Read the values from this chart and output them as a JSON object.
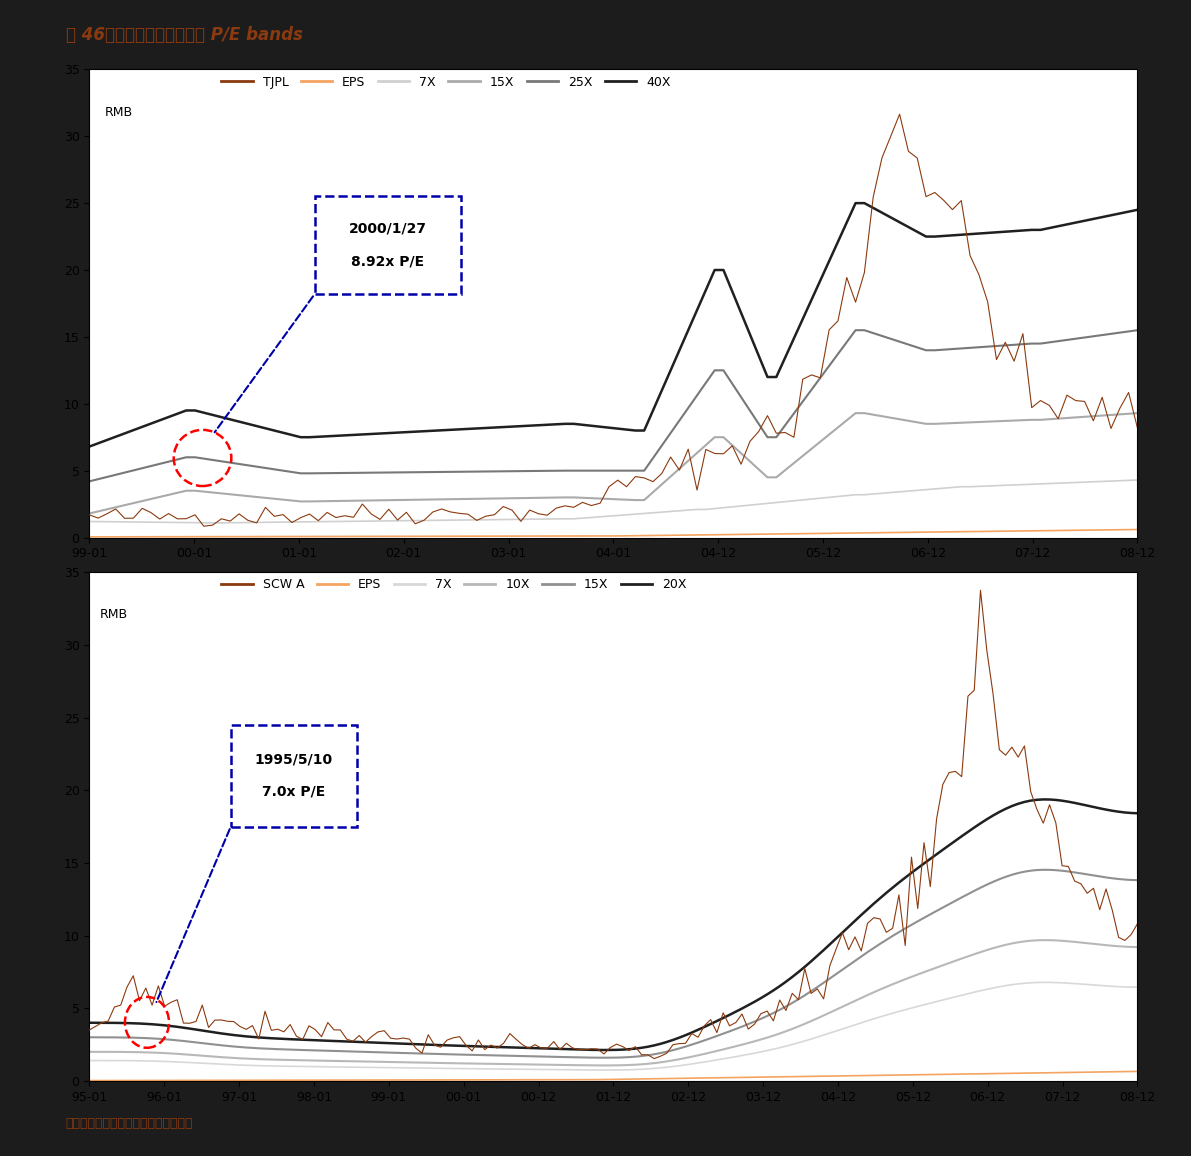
{
  "title": "图 46（续）：港口上市公司 P/E bands",
  "footer": "资料来源：彭博资讯，中金公司研究部",
  "title_color": "#8B3A0F",
  "footer_color": "#8B3A0F",
  "bg_color": "#1C1C1C",
  "plot_bg_color": "#ffffff",
  "chart1": {
    "legend_labels": [
      "TJPL",
      "EPS",
      "7X",
      "15X",
      "25X",
      "40X"
    ],
    "legend_colors": [
      "#8B3A0F",
      "#F4A460",
      "#d0d0d0",
      "#aaaaaa",
      "#787878",
      "#202020"
    ],
    "ylabel": "RMB",
    "ylim": [
      0,
      35
    ],
    "yticks": [
      0,
      5,
      10,
      15,
      20,
      25,
      30,
      35
    ],
    "xtick_labels": [
      "99-01",
      "00-01",
      "01-01",
      "02-01",
      "03-01",
      "04-01",
      "04-12",
      "05-12",
      "06-12",
      "07-12",
      "08-12"
    ],
    "annotation_text": "2000/1/27\n\n8.92x P/E"
  },
  "chart2": {
    "legend_labels": [
      "SCW A",
      "EPS",
      "7X",
      "10X",
      "15X",
      "20X"
    ],
    "legend_colors": [
      "#8B3A0F",
      "#F4A460",
      "#d8d8d8",
      "#b8b8b8",
      "#909090",
      "#202020"
    ],
    "ylabel": "RMB",
    "ylim": [
      0,
      35
    ],
    "yticks": [
      0,
      5,
      10,
      15,
      20,
      25,
      30,
      35
    ],
    "xtick_labels": [
      "95-01",
      "96-01",
      "97-01",
      "98-01",
      "99-01",
      "00-01",
      "00-12",
      "01-12",
      "02-12",
      "03-12",
      "04-12",
      "05-12",
      "06-12",
      "07-12",
      "08-12"
    ],
    "annotation_text": "1995/5/10\n\n7.0x P/E"
  }
}
